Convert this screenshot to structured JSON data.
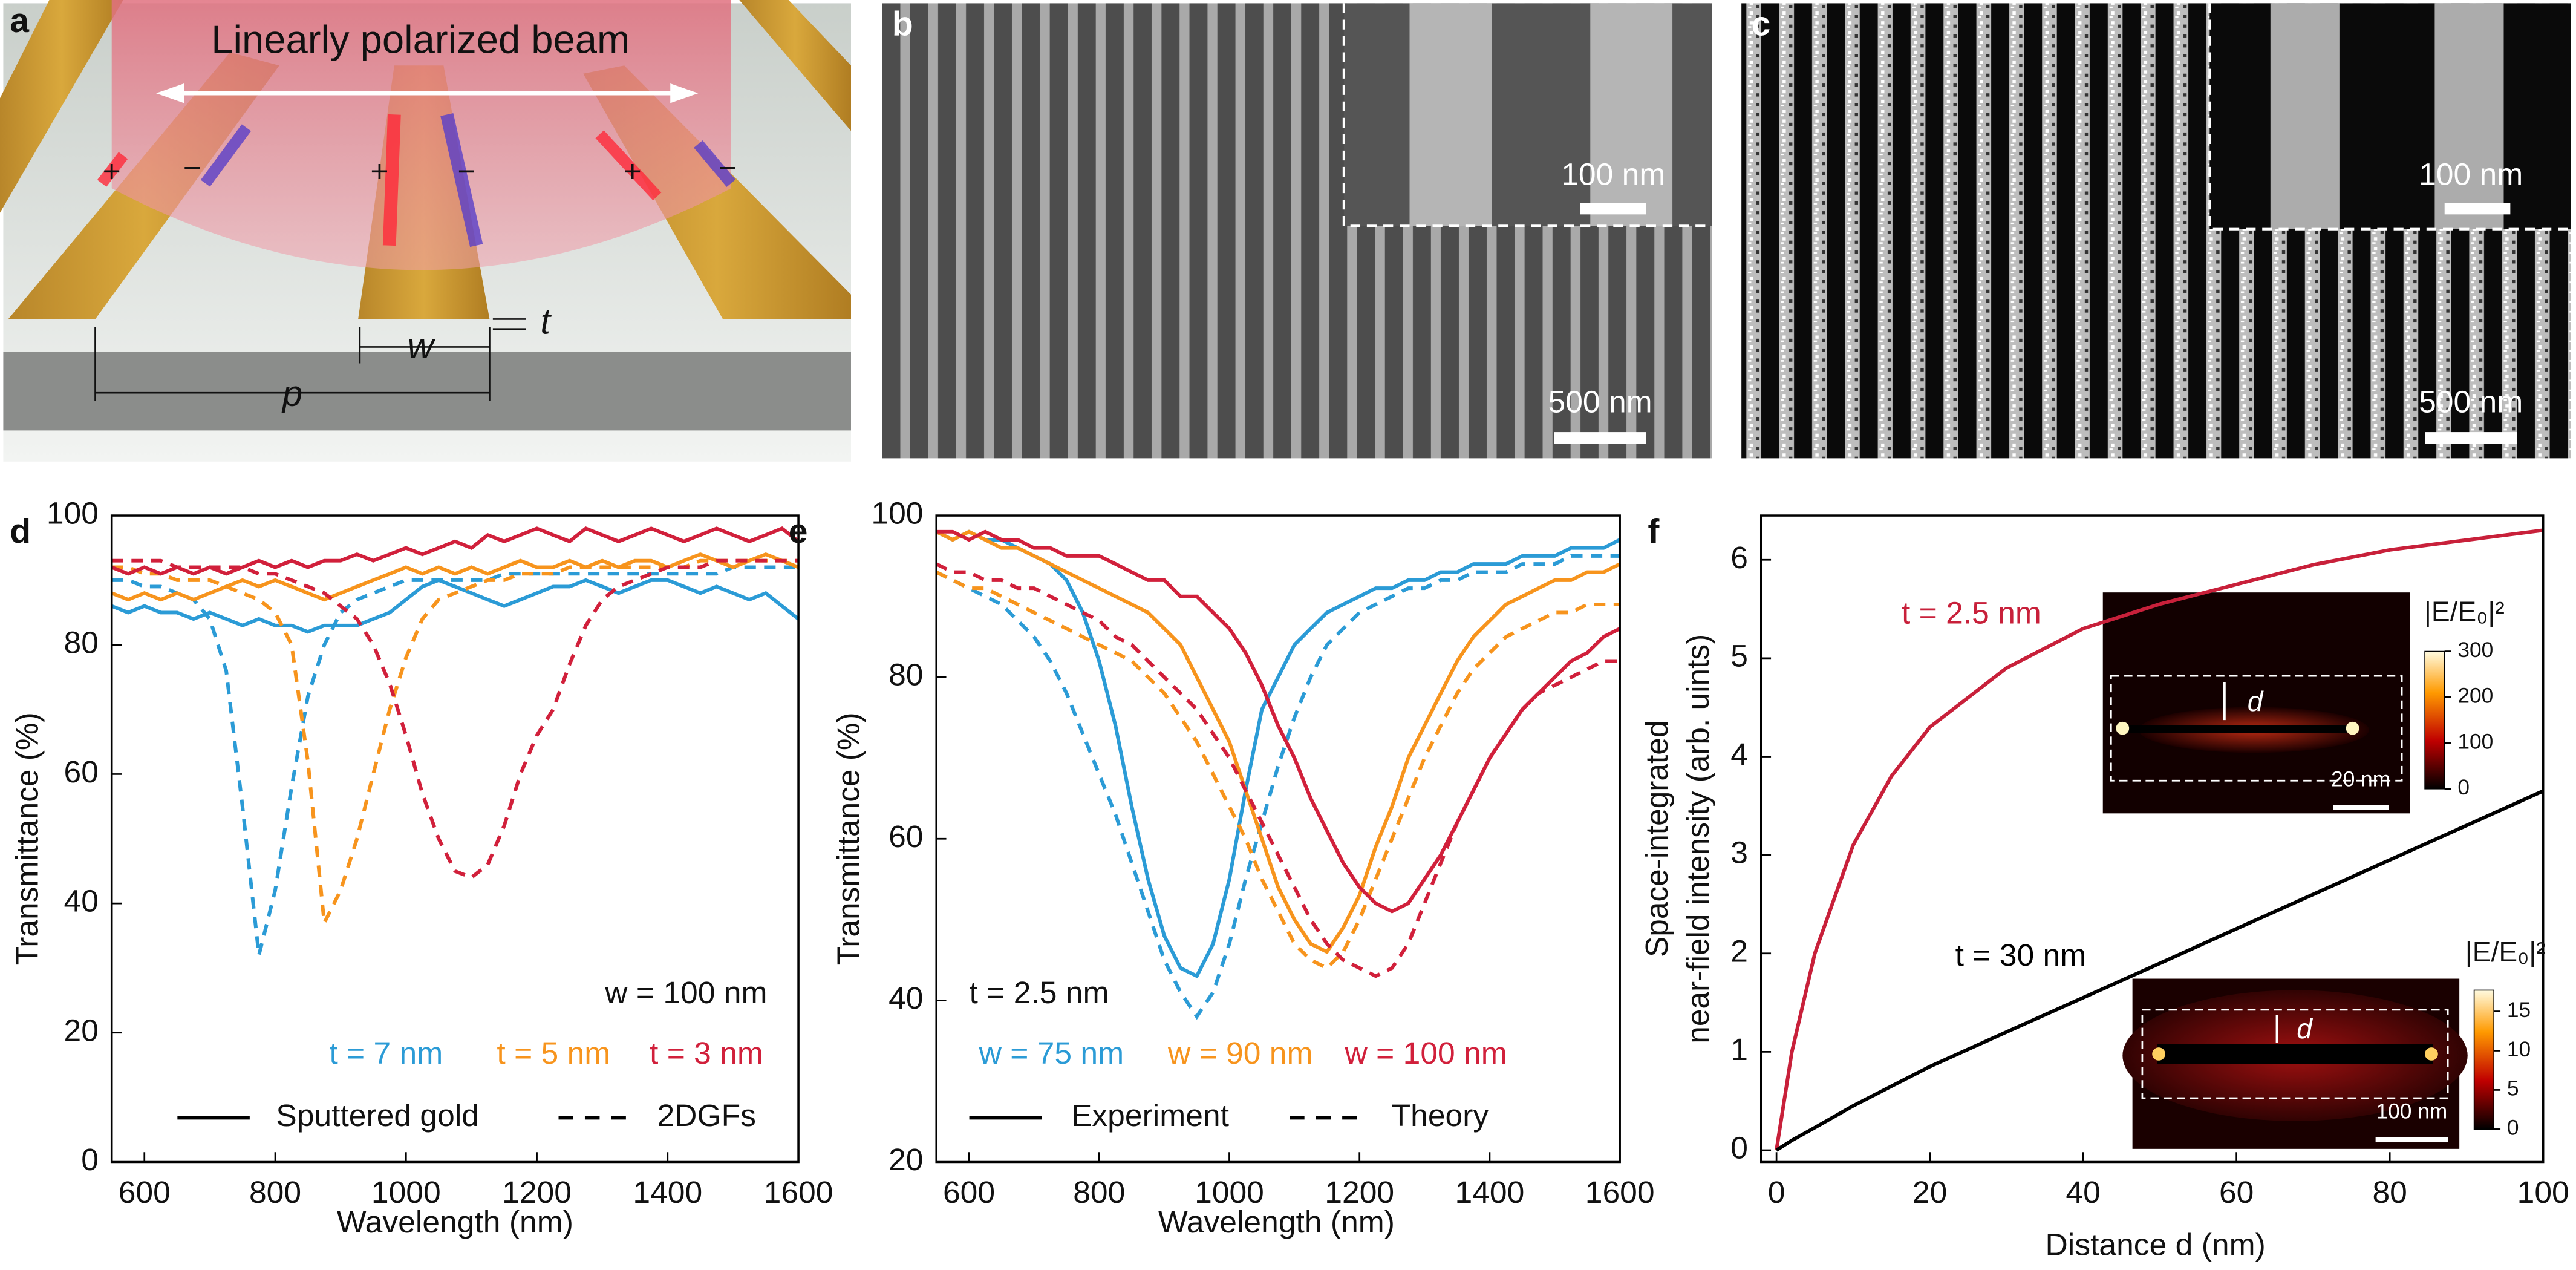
{
  "panels": {
    "a": {
      "letter": "a",
      "beam": "Linearly polarized beam",
      "charges": [
        "+",
        "−",
        "+",
        "−",
        "+",
        "−"
      ],
      "dims": [
        "w",
        "t",
        "p"
      ]
    },
    "b": {
      "letter": "b",
      "inset_scale": "100 nm",
      "scale": "500 nm"
    },
    "c": {
      "letter": "c",
      "inset_scale": "100 nm",
      "scale": "500 nm"
    }
  },
  "chart_data": [
    {
      "type": "line",
      "panel": "d",
      "x_label": "Wavelength (nm)",
      "y_label": "Transmittance (%)",
      "xlim": [
        550,
        1600
      ],
      "ylim": [
        0,
        100
      ],
      "xticks": [
        600,
        800,
        1000,
        1200,
        1400,
        1600
      ],
      "yticks": [
        0,
        20,
        40,
        60,
        80,
        100
      ],
      "x": [
        550,
        575,
        600,
        625,
        650,
        675,
        700,
        725,
        750,
        775,
        800,
        825,
        850,
        875,
        900,
        925,
        950,
        975,
        1000,
        1025,
        1050,
        1075,
        1100,
        1125,
        1150,
        1175,
        1200,
        1225,
        1250,
        1275,
        1300,
        1325,
        1350,
        1375,
        1400,
        1425,
        1450,
        1475,
        1500,
        1525,
        1550,
        1575,
        1600
      ],
      "annotations": [
        "w = 100 nm"
      ],
      "legend": [
        {
          "label": "Sputtered gold",
          "dash": "solid"
        },
        {
          "label": "2DGFs",
          "dash": "dashed"
        }
      ],
      "series": [
        {
          "name": "t = 7 nm",
          "color": "#2b9bd6",
          "values": [
            86,
            85,
            86,
            85,
            85,
            84,
            85,
            84,
            83,
            84,
            83,
            83,
            82,
            83,
            83,
            83,
            84,
            85,
            87,
            89,
            90,
            89,
            88,
            87,
            86,
            87,
            88,
            89,
            89,
            90,
            89,
            88,
            89,
            90,
            90,
            89,
            88,
            89,
            88,
            87,
            88,
            86,
            84
          ],
          "dashed_values": [
            90,
            90,
            89,
            89,
            88,
            87,
            84,
            76,
            55,
            32,
            42,
            58,
            72,
            80,
            85,
            87,
            88,
            89,
            90,
            90,
            90,
            90,
            90,
            90,
            91,
            91,
            91,
            91,
            91,
            91,
            91,
            91,
            91,
            91,
            91,
            91,
            91,
            91,
            92,
            92,
            92,
            92,
            92
          ]
        },
        {
          "name": "t = 5 nm",
          "color": "#f7941d",
          "values": [
            88,
            87,
            88,
            87,
            88,
            87,
            88,
            89,
            90,
            89,
            90,
            89,
            88,
            87,
            88,
            89,
            90,
            91,
            92,
            91,
            92,
            91,
            92,
            91,
            92,
            93,
            92,
            92,
            93,
            92,
            93,
            92,
            93,
            93,
            92,
            93,
            94,
            93,
            92,
            93,
            94,
            93,
            92
          ],
          "dashed_values": [
            92,
            92,
            91,
            91,
            90,
            90,
            90,
            89,
            88,
            87,
            85,
            80,
            62,
            37,
            42,
            50,
            60,
            70,
            78,
            84,
            87,
            88,
            89,
            90,
            90,
            91,
            91,
            91,
            92,
            92,
            92,
            92,
            92,
            92,
            92,
            92,
            93,
            93,
            93,
            93,
            93,
            93,
            93
          ]
        },
        {
          "name": "t = 3 nm",
          "color": "#d1203b",
          "values": [
            92,
            91,
            92,
            91,
            92,
            91,
            92,
            91,
            92,
            93,
            92,
            93,
            92,
            93,
            93,
            94,
            93,
            94,
            95,
            94,
            95,
            96,
            95,
            97,
            96,
            97,
            98,
            97,
            96,
            98,
            97,
            96,
            97,
            98,
            97,
            96,
            97,
            98,
            97,
            96,
            97,
            98,
            96
          ],
          "dashed_values": [
            93,
            93,
            93,
            93,
            92,
            92,
            92,
            92,
            92,
            91,
            91,
            90,
            89,
            88,
            86,
            84,
            80,
            74,
            66,
            57,
            50,
            45,
            44,
            46,
            52,
            60,
            66,
            70,
            77,
            83,
            87,
            89,
            90,
            91,
            92,
            92,
            92,
            93,
            93,
            93,
            93,
            93,
            93
          ]
        }
      ]
    },
    {
      "type": "line",
      "panel": "e",
      "x_label": "Wavelength (nm)",
      "y_label": "Transmittance (%)",
      "xlim": [
        550,
        1600
      ],
      "ylim": [
        20,
        100
      ],
      "xticks": [
        600,
        800,
        1000,
        1200,
        1400,
        1600
      ],
      "yticks": [
        20,
        40,
        60,
        80,
        100
      ],
      "x": [
        550,
        575,
        600,
        625,
        650,
        675,
        700,
        725,
        750,
        775,
        800,
        825,
        850,
        875,
        900,
        925,
        950,
        975,
        1000,
        1025,
        1050,
        1075,
        1100,
        1125,
        1150,
        1175,
        1200,
        1225,
        1250,
        1275,
        1300,
        1325,
        1350,
        1375,
        1400,
        1425,
        1450,
        1475,
        1500,
        1525,
        1550,
        1575,
        1600
      ],
      "annotations": [
        "t = 2.5 nm"
      ],
      "legend": [
        {
          "label": "Experiment",
          "dash": "solid"
        },
        {
          "label": "Theory",
          "dash": "dashed"
        }
      ],
      "series": [
        {
          "name": "w = 75 nm",
          "color": "#2b9bd6",
          "values": [
            98,
            97,
            98,
            97,
            97,
            96,
            95,
            94,
            92,
            88,
            82,
            74,
            64,
            55,
            48,
            44,
            43,
            47,
            55,
            66,
            76,
            80,
            84,
            86,
            88,
            89,
            90,
            91,
            91,
            92,
            92,
            93,
            93,
            94,
            94,
            94,
            95,
            95,
            95,
            96,
            96,
            96,
            97
          ],
          "dashed_values": [
            93,
            92,
            91,
            90,
            89,
            87,
            85,
            82,
            78,
            73,
            68,
            63,
            57,
            51,
            45,
            41,
            38,
            41,
            47,
            55,
            62,
            69,
            75,
            80,
            84,
            86,
            88,
            89,
            90,
            91,
            91,
            92,
            92,
            93,
            93,
            93,
            94,
            94,
            94,
            95,
            95,
            95,
            95
          ]
        },
        {
          "name": "w = 90 nm",
          "color": "#f7941d",
          "values": [
            98,
            97,
            98,
            97,
            96,
            96,
            95,
            94,
            93,
            92,
            91,
            90,
            89,
            88,
            86,
            84,
            80,
            76,
            72,
            66,
            60,
            54,
            50,
            47,
            46,
            49,
            53,
            59,
            64,
            70,
            74,
            78,
            82,
            85,
            87,
            89,
            90,
            91,
            92,
            92,
            93,
            93,
            94
          ],
          "dashed_values": [
            93,
            92,
            91,
            91,
            90,
            89,
            88,
            87,
            86,
            85,
            84,
            83,
            82,
            80,
            78,
            75,
            72,
            68,
            64,
            60,
            55,
            51,
            47,
            45,
            44,
            46,
            50,
            55,
            60,
            65,
            70,
            74,
            78,
            81,
            83,
            85,
            86,
            87,
            88,
            88,
            89,
            89,
            89
          ]
        },
        {
          "name": "w = 100 nm",
          "color": "#d1203b",
          "values": [
            98,
            98,
            97,
            98,
            97,
            97,
            96,
            96,
            95,
            95,
            95,
            94,
            93,
            92,
            92,
            90,
            90,
            88,
            86,
            83,
            79,
            74,
            70,
            65,
            61,
            57,
            54,
            52,
            51,
            52,
            55,
            58,
            62,
            66,
            70,
            73,
            76,
            78,
            80,
            82,
            83,
            85,
            86
          ],
          "dashed_values": [
            94,
            93,
            93,
            92,
            92,
            91,
            91,
            90,
            89,
            88,
            87,
            85,
            84,
            82,
            80,
            78,
            76,
            73,
            70,
            66,
            62,
            58,
            54,
            50,
            47,
            45,
            44,
            43,
            44,
            47,
            52,
            57,
            62,
            66,
            70,
            73,
            76,
            78,
            79,
            80,
            81,
            82,
            82
          ]
        }
      ]
    },
    {
      "type": "line",
      "panel": "f",
      "x_label": "Distance d (nm)",
      "y_label": [
        "Space-integrated",
        "near-field intensity (arb. uints)"
      ],
      "xlim": [
        -2,
        100
      ],
      "ylim": [
        -0.12,
        6.45
      ],
      "xticks": [
        0,
        20,
        40,
        60,
        80,
        100
      ],
      "yticks": [
        0,
        1,
        2,
        3,
        4,
        5,
        6
      ],
      "x": [
        0,
        2,
        5,
        10,
        15,
        20,
        30,
        40,
        50,
        60,
        70,
        80,
        90,
        100
      ],
      "series": [
        {
          "name": "t = 2.5 nm",
          "color": "#c8203a",
          "values": [
            0,
            1.0,
            2.0,
            3.1,
            3.8,
            4.3,
            4.9,
            5.3,
            5.55,
            5.75,
            5.95,
            6.1,
            6.2,
            6.3
          ]
        },
        {
          "name": "t = 30 nm",
          "color": "#000000",
          "values": [
            0,
            0.1,
            0.23,
            0.45,
            0.65,
            0.85,
            1.2,
            1.55,
            1.9,
            2.25,
            2.6,
            2.95,
            3.3,
            3.65
          ]
        }
      ],
      "insets": [
        {
          "colorbar_label": "|E/E₀|²",
          "colorbar_lim": [
            0,
            300
          ],
          "colorbar_ticks": [
            0,
            100,
            200,
            300
          ],
          "scale_bar": "20 nm",
          "gap_label": "d"
        },
        {
          "colorbar_label": "|E/E₀|²",
          "colorbar_lim": [
            0,
            17.7
          ],
          "colorbar_ticks": [
            0,
            5,
            10,
            15
          ],
          "scale_bar": "100 nm",
          "gap_label": "d"
        }
      ]
    }
  ]
}
